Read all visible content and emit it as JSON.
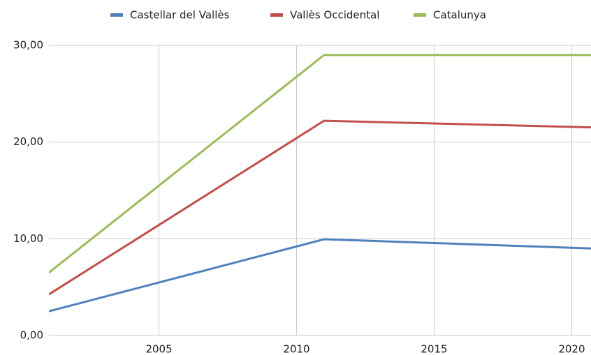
{
  "chart_data": {
    "type": "line",
    "x": [
      2001,
      2011,
      2021
    ],
    "series": [
      {
        "name": "Castellar del Vallès",
        "color": "#4f81bd",
        "values": [
          2.5,
          9.95,
          8.97
        ]
      },
      {
        "name": "Vallès Occidental",
        "color": "#c0504d",
        "values": [
          4.25,
          22.2,
          21.5
        ]
      },
      {
        "name": "Catalunya",
        "color": "#9bbb59",
        "values": [
          6.5,
          29.0,
          29.0
        ]
      }
    ],
    "xlim": [
      2001,
      2020.7
    ],
    "xticks": [
      2005,
      2010,
      2015,
      2020
    ],
    "ylim": [
      0,
      30
    ],
    "yticks": [
      {
        "value": 0,
        "label": "0,00"
      },
      {
        "value": 10,
        "label": "10,00"
      },
      {
        "value": 20,
        "label": "20,00"
      },
      {
        "value": 30,
        "label": "30,00"
      }
    ],
    "grid": true,
    "legend": "top"
  }
}
